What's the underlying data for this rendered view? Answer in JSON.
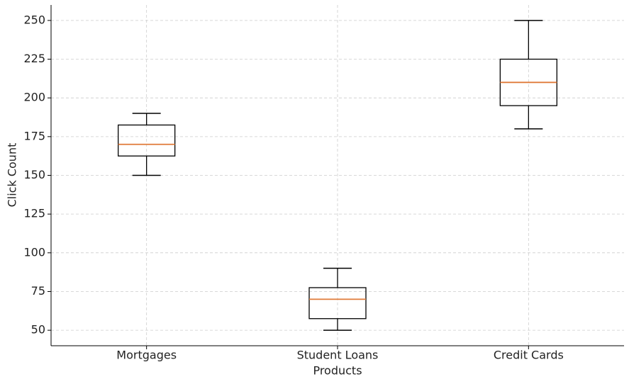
{
  "chart_data": {
    "type": "box",
    "xlabel": "Products",
    "ylabel": "Click Count",
    "categories": [
      "Mortgages",
      "Student Loans",
      "Credit Cards"
    ],
    "boxes": [
      {
        "min": 150,
        "q1": 162.5,
        "median": 170,
        "q3": 182.5,
        "max": 190
      },
      {
        "min": 50,
        "q1": 57.5,
        "median": 70,
        "q3": 77.5,
        "max": 90
      },
      {
        "min": 180,
        "q1": 195,
        "median": 210,
        "q3": 225,
        "max": 250
      }
    ],
    "box_color": "#000000",
    "median_color": "#e07b39",
    "ylim": [
      40,
      260
    ],
    "yticks": [
      50,
      75,
      100,
      125,
      150,
      175,
      200,
      225,
      250
    ],
    "grid": true
  }
}
